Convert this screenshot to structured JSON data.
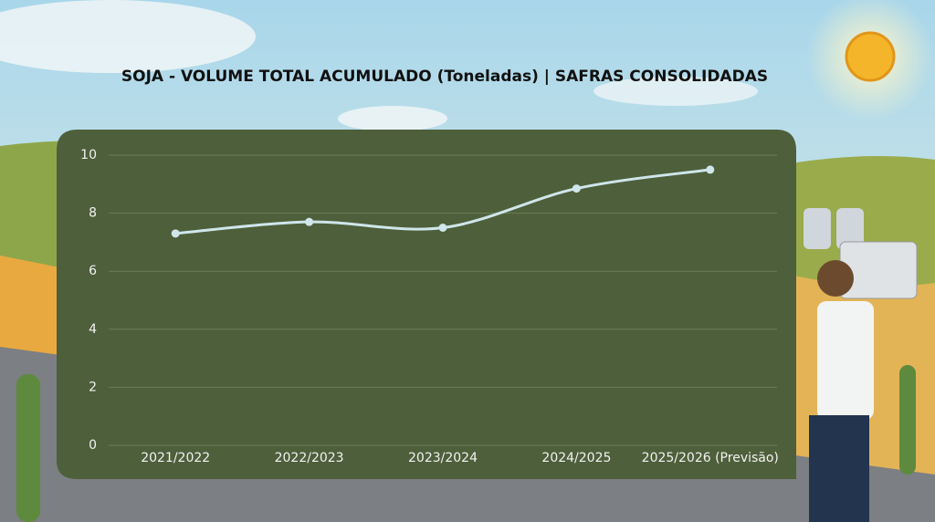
{
  "chart_data": {
    "type": "line",
    "title": "SOJA - VOLUME TOTAL ACUMULADO (Toneladas) | SAFRAS CONSOLIDADAS",
    "categories": [
      "2021/2022",
      "2022/2023",
      "2023/2024",
      "2024/2025",
      "2025/2026 (Previsão)"
    ],
    "values": [
      7.3,
      7.7,
      7.5,
      8.85,
      9.5
    ],
    "color": "#cfe6ea",
    "ylim": [
      0,
      10
    ],
    "yticks": [
      0,
      2,
      4,
      6,
      8,
      10
    ],
    "grid": true
  }
}
